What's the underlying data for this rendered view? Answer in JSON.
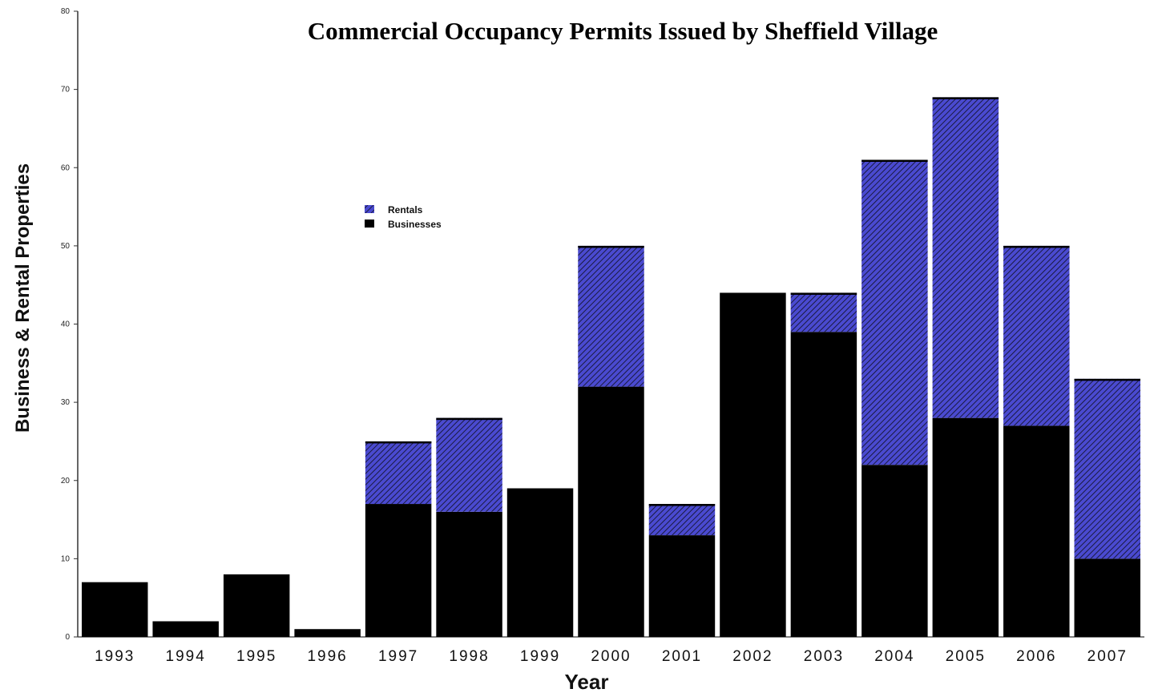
{
  "colors": {
    "businesses": "#000000",
    "rentals": "#4a4ad0",
    "rentals_hatch": "#1a1a40",
    "axis": "#333333",
    "bar_border": "#ffffff"
  },
  "chart_data": {
    "type": "bar",
    "stacked": true,
    "title": "Commercial Occupancy Permits Issued by Sheffield Village",
    "xlabel": "Year",
    "ylabel": "Business & Rental Properties",
    "ylim": [
      0,
      80
    ],
    "yticks": [
      "0",
      "10",
      "20",
      "30",
      "40",
      "50",
      "60",
      "70",
      "80"
    ],
    "grid": false,
    "legend_position": "upper-left",
    "categories": [
      "1993",
      "1994",
      "1995",
      "1996",
      "1997",
      "1998",
      "1999",
      "2000",
      "2001",
      "2002",
      "2003",
      "2004",
      "2005",
      "2006",
      "2007"
    ],
    "series": [
      {
        "name": "Businesses",
        "values": [
          7,
          2,
          8,
          1,
          17,
          16,
          19,
          32,
          13,
          44,
          39,
          22,
          28,
          27,
          10
        ]
      },
      {
        "name": "Rentals",
        "values": [
          0,
          0,
          0,
          0,
          8,
          12,
          0,
          18,
          4,
          0,
          5,
          39,
          41,
          23,
          23
        ]
      }
    ],
    "legend": [
      "Rentals",
      "Businesses"
    ]
  }
}
